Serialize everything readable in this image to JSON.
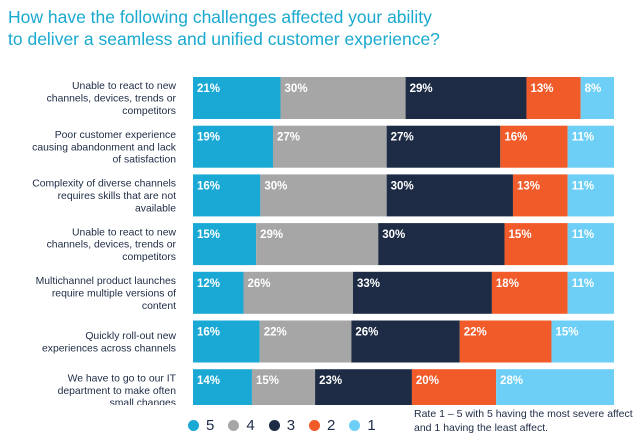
{
  "title_line1": "How have the following challenges affected your ability",
  "title_line2": "to deliver a seamless and unified customer experience?",
  "note": "Rate 1 – 5 with 5 having the most severe affect and 1 having the least affect.",
  "colors": {
    "5": "#1aa9d4",
    "4": "#a6a6a6",
    "3": "#1d2b45",
    "2": "#f15a29",
    "1": "#6dcff6"
  },
  "legend": [
    {
      "label": "5",
      "color": "#1aa9d4"
    },
    {
      "label": "4",
      "color": "#a6a6a6"
    },
    {
      "label": "3",
      "color": "#1d2b45"
    },
    {
      "label": "2",
      "color": "#f15a29"
    },
    {
      "label": "1",
      "color": "#6dcff6"
    }
  ],
  "chart_data": {
    "type": "bar",
    "orientation": "horizontal",
    "stacked": true,
    "categories": [
      [
        "Unable to react to new",
        "channels, devices, trends or",
        "competitors"
      ],
      [
        "Poor customer experience",
        "causing abandonment and lack",
        "of satisfaction"
      ],
      [
        "Complexity of diverse channels",
        "requires skills that are not",
        "available"
      ],
      [
        "Unable to react to new",
        "channels, devices, trends or",
        "competitors"
      ],
      [
        "Multichannel product launches",
        "require multiple versions of",
        "content"
      ],
      [
        "Quickly roll-out new",
        "experiences across channels"
      ],
      [
        "We have to go to our IT",
        "department to make often",
        "small changes"
      ]
    ],
    "series": [
      {
        "name": "5",
        "values": [
          21,
          19,
          16,
          15,
          12,
          16,
          14
        ]
      },
      {
        "name": "4",
        "values": [
          30,
          27,
          30,
          29,
          26,
          22,
          15
        ]
      },
      {
        "name": "3",
        "values": [
          29,
          27,
          30,
          30,
          33,
          26,
          23
        ]
      },
      {
        "name": "2",
        "values": [
          13,
          16,
          13,
          15,
          18,
          22,
          20
        ]
      },
      {
        "name": "1",
        "values": [
          8,
          11,
          11,
          11,
          11,
          15,
          28
        ]
      }
    ],
    "value_suffix": "%"
  }
}
